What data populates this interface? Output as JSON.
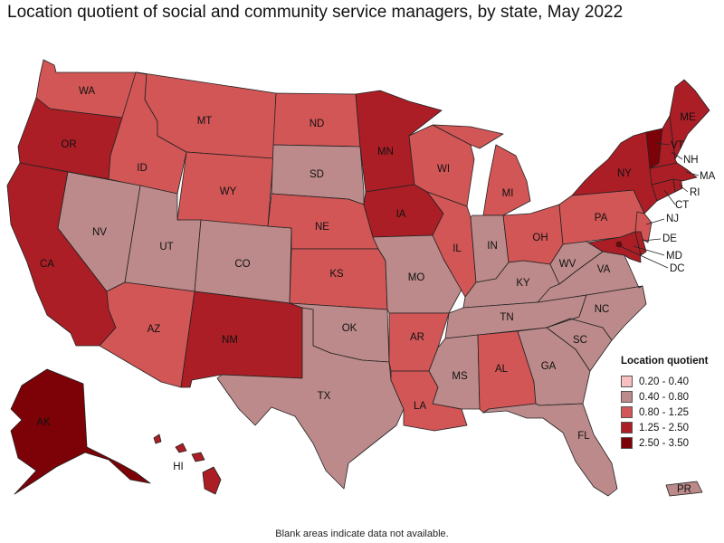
{
  "title": "Location quotient of social and community service managers, by state, May 2022",
  "footnote": "Blank areas indicate data not available.",
  "legend": {
    "title": "Location quotient",
    "items": [
      {
        "label": "0.20 - 0.40",
        "color": "#f9c0c0"
      },
      {
        "label": "0.40 - 0.80",
        "color": "#bc8a8a"
      },
      {
        "label": "0.80 - 1.25",
        "color": "#d25656"
      },
      {
        "label": "1.25 - 2.50",
        "color": "#ab1e25"
      },
      {
        "label": "2.50 - 3.50",
        "color": "#7d0207"
      }
    ]
  },
  "states": {
    "WA": {
      "label": "WA",
      "class": 2
    },
    "OR": {
      "label": "OR",
      "class": 3
    },
    "CA": {
      "label": "CA",
      "class": 3
    },
    "ID": {
      "label": "ID",
      "class": 2
    },
    "NV": {
      "label": "NV",
      "class": 1
    },
    "MT": {
      "label": "MT",
      "class": 2
    },
    "WY": {
      "label": "WY",
      "class": 2
    },
    "UT": {
      "label": "UT",
      "class": 1
    },
    "AZ": {
      "label": "AZ",
      "class": 2
    },
    "CO": {
      "label": "CO",
      "class": 1
    },
    "NM": {
      "label": "NM",
      "class": 3
    },
    "ND": {
      "label": "ND",
      "class": 2
    },
    "SD": {
      "label": "SD",
      "class": 1
    },
    "NE": {
      "label": "NE",
      "class": 2
    },
    "KS": {
      "label": "KS",
      "class": 2
    },
    "OK": {
      "label": "OK",
      "class": 1
    },
    "TX": {
      "label": "TX",
      "class": 1
    },
    "MN": {
      "label": "MN",
      "class": 3
    },
    "IA": {
      "label": "IA",
      "class": 3
    },
    "MO": {
      "label": "MO",
      "class": 1
    },
    "AR": {
      "label": "AR",
      "class": 2
    },
    "LA": {
      "label": "LA",
      "class": 2
    },
    "WI": {
      "label": "WI",
      "class": 2
    },
    "IL": {
      "label": "IL",
      "class": 2
    },
    "MI": {
      "label": "MI",
      "class": 2
    },
    "IN": {
      "label": "IN",
      "class": 1
    },
    "OH": {
      "label": "OH",
      "class": 2
    },
    "KY": {
      "label": "KY",
      "class": 1
    },
    "TN": {
      "label": "TN",
      "class": 1
    },
    "MS": {
      "label": "MS",
      "class": 1
    },
    "AL": {
      "label": "AL",
      "class": 2
    },
    "GA": {
      "label": "GA",
      "class": 1
    },
    "FL": {
      "label": "FL",
      "class": 1
    },
    "SC": {
      "label": "SC",
      "class": 1
    },
    "NC": {
      "label": "NC",
      "class": 1
    },
    "VA": {
      "label": "VA",
      "class": 1
    },
    "WV": {
      "label": "WV",
      "class": 1
    },
    "PA": {
      "label": "PA",
      "class": 2
    },
    "NY": {
      "label": "NY",
      "class": 3
    },
    "ME": {
      "label": "ME",
      "class": 3
    },
    "VT": {
      "label": "VT",
      "class": 4
    },
    "NH": {
      "label": "NH",
      "class": 3
    },
    "MA": {
      "label": "MA",
      "class": 3
    },
    "RI": {
      "label": "RI",
      "class": 3
    },
    "CT": {
      "label": "CT",
      "class": 3
    },
    "NJ": {
      "label": "NJ",
      "class": 2
    },
    "DE": {
      "label": "DE",
      "class": 3
    },
    "MD": {
      "label": "MD",
      "class": 3
    },
    "DC": {
      "label": "DC",
      "class": 4
    },
    "AK": {
      "label": "AK",
      "class": 4
    },
    "HI": {
      "label": "HI",
      "class": 3
    },
    "PR": {
      "label": "PR",
      "class": 1
    }
  }
}
